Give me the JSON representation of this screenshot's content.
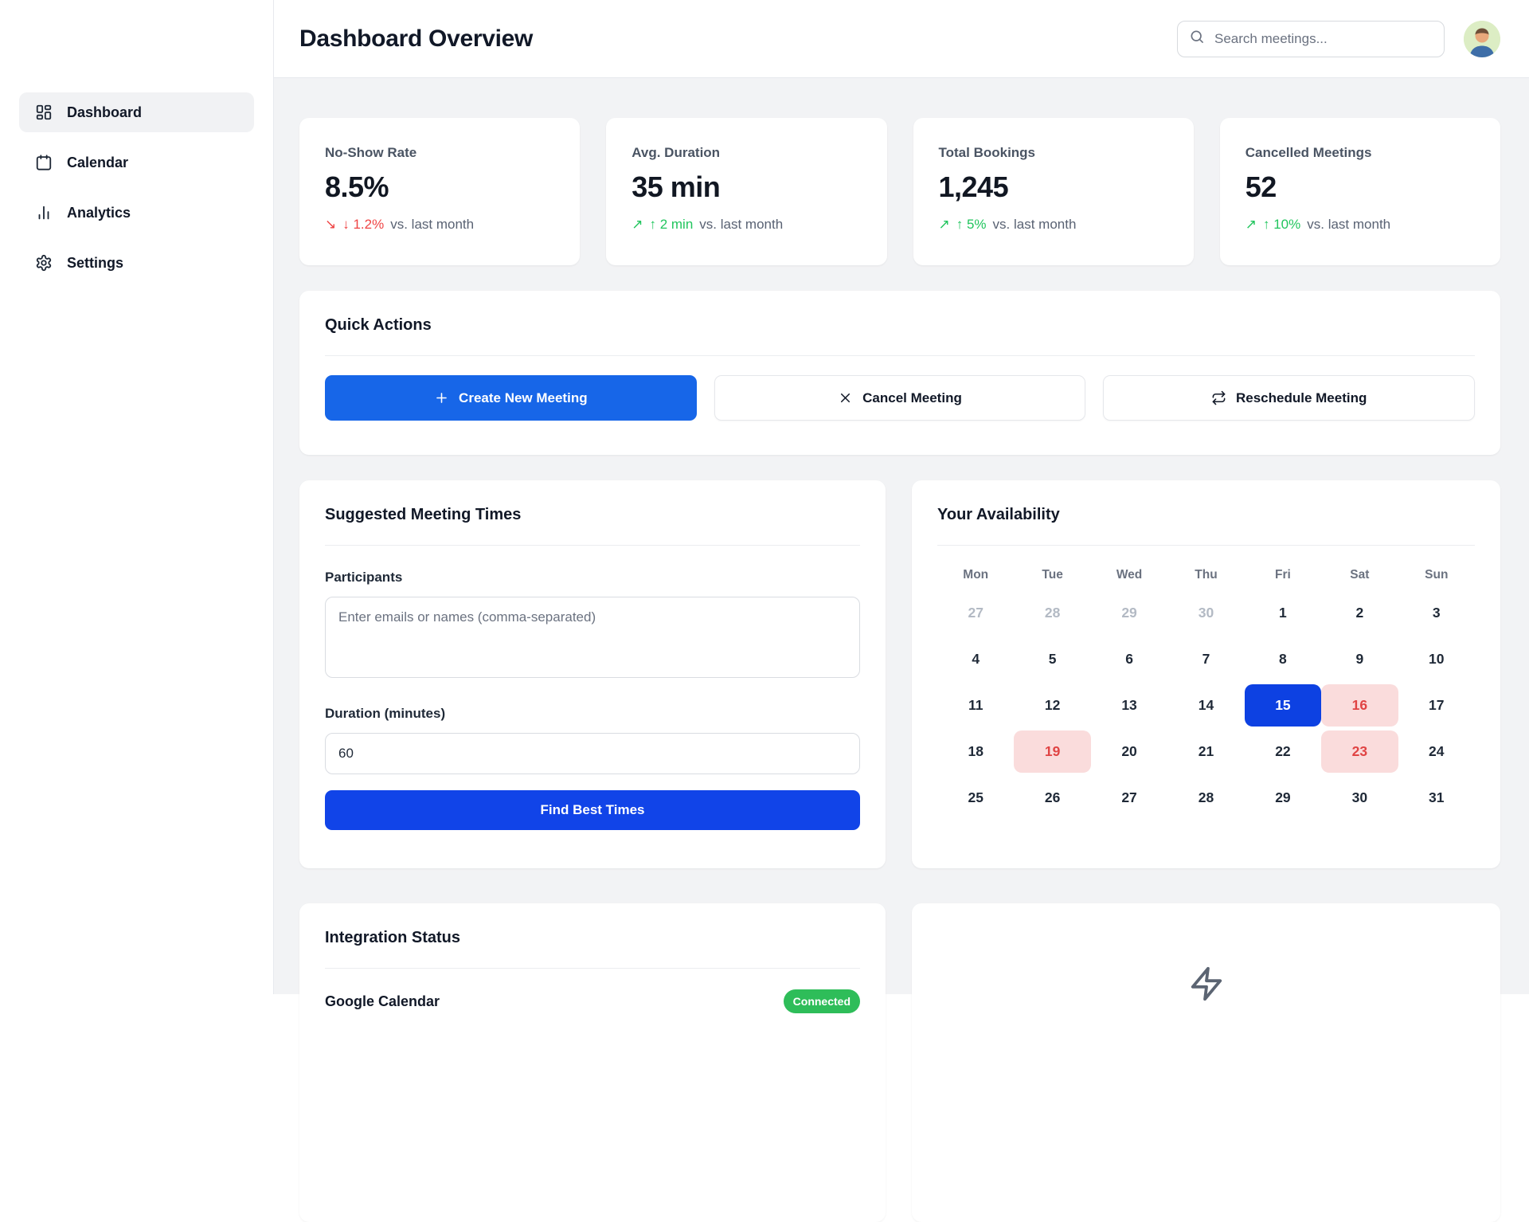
{
  "header": {
    "title": "Dashboard Overview",
    "search_placeholder": "Search meetings..."
  },
  "sidebar": {
    "items": [
      {
        "label": "Dashboard",
        "icon": "dashboard",
        "active": true
      },
      {
        "label": "Calendar",
        "icon": "calendar",
        "active": false
      },
      {
        "label": "Analytics",
        "icon": "bar-chart",
        "active": false
      },
      {
        "label": "Settings",
        "icon": "gear",
        "active": false
      }
    ]
  },
  "stats": [
    {
      "label": "No-Show Rate",
      "value": "8.5%",
      "trend": "down",
      "trend_arrow": "↘",
      "delta": "↓ 1.2%",
      "suffix": "vs. last month"
    },
    {
      "label": "Avg. Duration",
      "value": "35 min",
      "trend": "up",
      "trend_arrow": "↗",
      "delta": "↑ 2 min",
      "suffix": "vs. last month"
    },
    {
      "label": "Total Bookings",
      "value": "1,245",
      "trend": "up",
      "trend_arrow": "↗",
      "delta": "↑ 5%",
      "suffix": "vs. last month"
    },
    {
      "label": "Cancelled Meetings",
      "value": "52",
      "trend": "up",
      "trend_arrow": "↗",
      "delta": "↑ 10%",
      "suffix": "vs. last month"
    }
  ],
  "quick_actions": {
    "title": "Quick Actions",
    "buttons": [
      {
        "label": "Create New Meeting",
        "icon": "plus",
        "variant": "primary"
      },
      {
        "label": "Cancel Meeting",
        "icon": "x",
        "variant": "secondary"
      },
      {
        "label": "Reschedule Meeting",
        "icon": "repeat",
        "variant": "secondary"
      }
    ]
  },
  "suggested": {
    "title": "Suggested Meeting Times",
    "participants_label": "Participants",
    "participants_placeholder": "Enter emails or names (comma-separated)",
    "duration_label": "Duration (minutes)",
    "duration_value": "60",
    "submit_label": "Find Best Times"
  },
  "availability": {
    "title": "Your Availability",
    "weekdays": [
      "Mon",
      "Tue",
      "Wed",
      "Thu",
      "Fri",
      "Sat",
      "Sun"
    ],
    "days": [
      {
        "d": "27",
        "s": "muted"
      },
      {
        "d": "28",
        "s": "muted"
      },
      {
        "d": "29",
        "s": "muted"
      },
      {
        "d": "30",
        "s": "muted"
      },
      {
        "d": "1"
      },
      {
        "d": "2"
      },
      {
        "d": "3"
      },
      {
        "d": "4"
      },
      {
        "d": "5"
      },
      {
        "d": "6"
      },
      {
        "d": "7"
      },
      {
        "d": "8"
      },
      {
        "d": "9"
      },
      {
        "d": "10"
      },
      {
        "d": "11"
      },
      {
        "d": "12"
      },
      {
        "d": "13"
      },
      {
        "d": "14"
      },
      {
        "d": "15",
        "s": "selected"
      },
      {
        "d": "16",
        "s": "busy"
      },
      {
        "d": "17"
      },
      {
        "d": "18"
      },
      {
        "d": "19",
        "s": "busy"
      },
      {
        "d": "20"
      },
      {
        "d": "21"
      },
      {
        "d": "22"
      },
      {
        "d": "23",
        "s": "busy"
      },
      {
        "d": "24"
      },
      {
        "d": "25"
      },
      {
        "d": "26"
      },
      {
        "d": "27"
      },
      {
        "d": "28"
      },
      {
        "d": "29"
      },
      {
        "d": "30"
      },
      {
        "d": "31"
      }
    ]
  },
  "integration": {
    "title": "Integration Status",
    "rows": [
      {
        "label": "Google Calendar",
        "badge": "Connected"
      }
    ]
  },
  "colors": {
    "primary-blue": "#1766e8",
    "deep-blue": "#1144e8",
    "selected-blue": "#0d41e2",
    "green": "#22c55e",
    "red": "#ef4444",
    "busy-bg": "#fadcdc",
    "busy-text": "#e04444",
    "badge-green": "#2ebd59"
  }
}
